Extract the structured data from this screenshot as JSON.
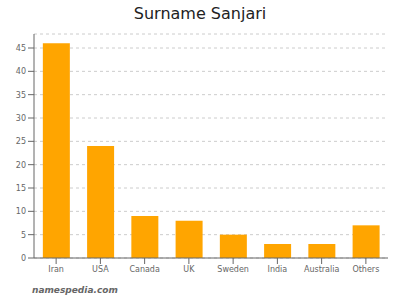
{
  "chart_data": {
    "type": "bar",
    "title": "Surname Sanjari",
    "categories": [
      "Iran",
      "USA",
      "Canada",
      "UK",
      "Sweden",
      "India",
      "Australia",
      "Others"
    ],
    "values": [
      46,
      24,
      9,
      8,
      5,
      3,
      3,
      7
    ],
    "color": "#FFA500",
    "ylim": [
      0,
      48
    ],
    "yticks": [
      0,
      5,
      10,
      15,
      20,
      25,
      30,
      35,
      40,
      45
    ],
    "grid": true,
    "annotations": [
      "namespedia.com"
    ]
  }
}
